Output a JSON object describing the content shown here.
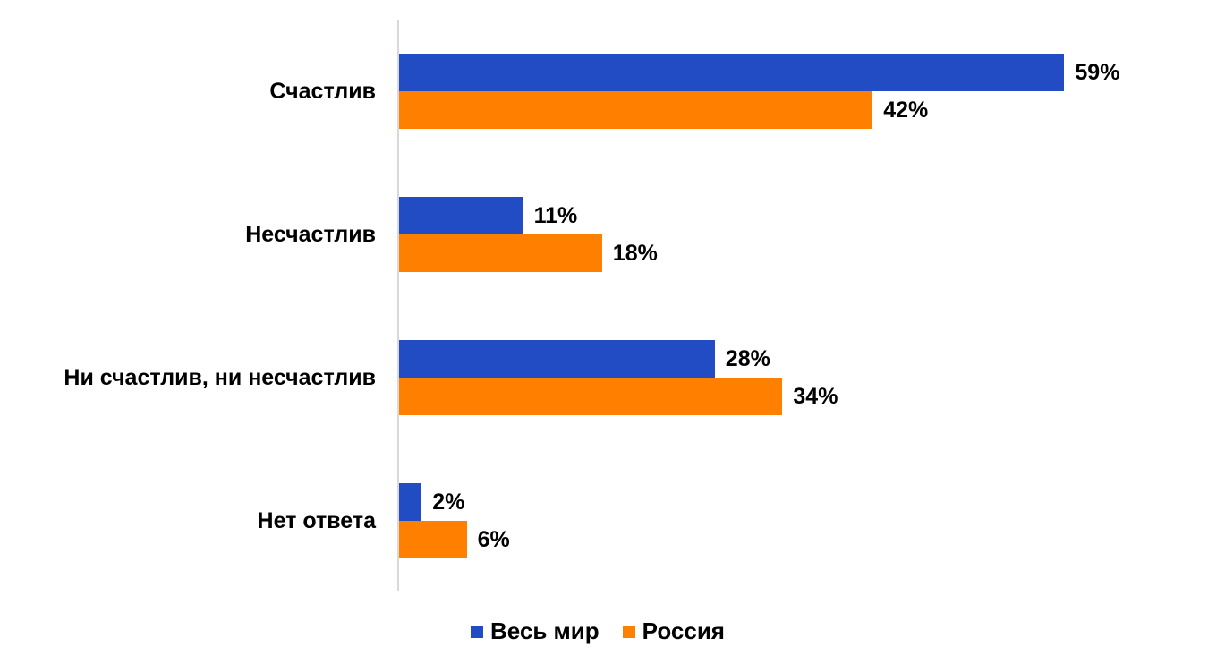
{
  "chart_data": {
    "type": "bar",
    "orientation": "horizontal",
    "categories": [
      "Счастлив",
      "Несчастлив",
      "Ни счастлив, ни несчастлив",
      "Нет ответа"
    ],
    "series": [
      {
        "name": "Весь мир",
        "color": "#214cc4",
        "values": [
          59,
          11,
          28,
          2
        ],
        "labels": [
          "59%",
          "11%",
          "28%",
          "2%"
        ]
      },
      {
        "name": "Россия",
        "color": "#ff8000",
        "values": [
          42,
          18,
          34,
          6
        ],
        "labels": [
          "42%",
          "18%",
          "34%",
          "6%"
        ]
      }
    ],
    "title": "",
    "xlabel": "",
    "ylabel": "",
    "xlim": [
      0,
      60
    ],
    "grid": false,
    "legend_position": "bottom",
    "value_format": "percent"
  },
  "legend": [
    "Весь мир",
    "Россия"
  ]
}
